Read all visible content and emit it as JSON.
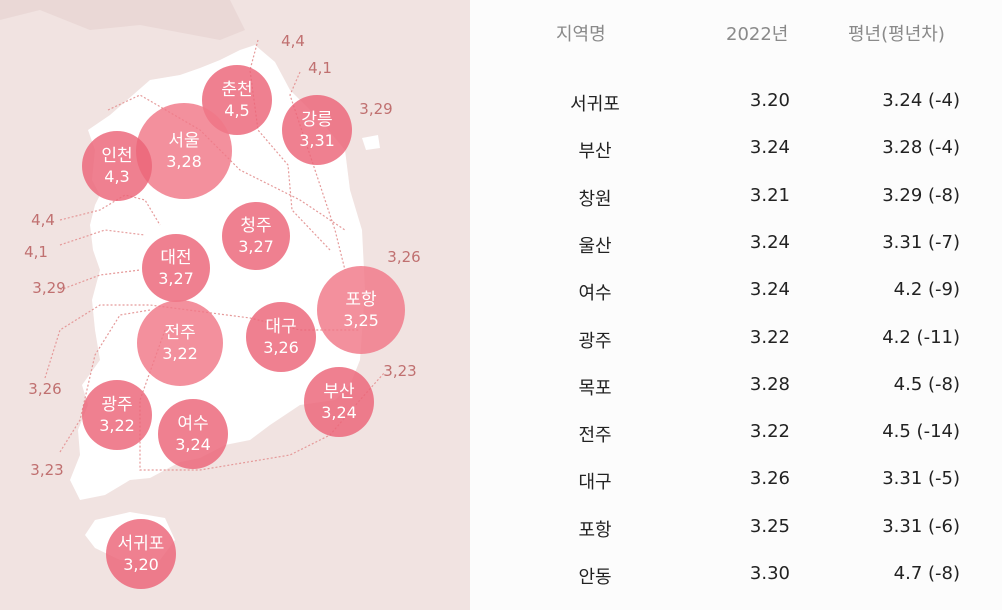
{
  "map": {
    "colors": {
      "background": "#f1e3e1",
      "land": "#ffffff",
      "bubble": "#ec6478",
      "isoline_label": "#c07070"
    },
    "bubbles": [
      {
        "name": "춘천",
        "value": "4,5"
      },
      {
        "name": "서울",
        "value": "3,28"
      },
      {
        "name": "인천",
        "value": "4,3"
      },
      {
        "name": "강릉",
        "value": "3,31"
      },
      {
        "name": "청주",
        "value": "3,27"
      },
      {
        "name": "대전",
        "value": "3,27"
      },
      {
        "name": "포항",
        "value": "3,25"
      },
      {
        "name": "전주",
        "value": "3,22"
      },
      {
        "name": "대구",
        "value": "3,26"
      },
      {
        "name": "부산",
        "value": "3,24"
      },
      {
        "name": "광주",
        "value": "3,22"
      },
      {
        "name": "여수",
        "value": "3,24"
      },
      {
        "name": "서귀포",
        "value": "3,20"
      }
    ],
    "isoline_labels": [
      "4,4",
      "4,1",
      "3,29",
      "4,4",
      "4,1",
      "3,29",
      "3,26",
      "3,23",
      "3,26",
      "3,23"
    ]
  },
  "table": {
    "headers": [
      "지역명",
      "2022년",
      "평년(평년차)"
    ],
    "rows": [
      [
        "서귀포",
        "3.20",
        "3.24 (-4)"
      ],
      [
        "부산",
        "3.24",
        "3.28 (-4)"
      ],
      [
        "창원",
        "3.21",
        "3.29 (-8)"
      ],
      [
        "울산",
        "3.24",
        "3.31 (-7)"
      ],
      [
        "여수",
        "3.24",
        "4.2 (-9)"
      ],
      [
        "광주",
        "3.22",
        "4.2 (-11)"
      ],
      [
        "목포",
        "3.28",
        "4.5 (-8)"
      ],
      [
        "전주",
        "3.22",
        "4.5 (-14)"
      ],
      [
        "대구",
        "3.26",
        "3.31 (-5)"
      ],
      [
        "포항",
        "3.25",
        "3.31 (-6)"
      ],
      [
        "안동",
        "3.30",
        "4.7 (-8)"
      ]
    ]
  }
}
